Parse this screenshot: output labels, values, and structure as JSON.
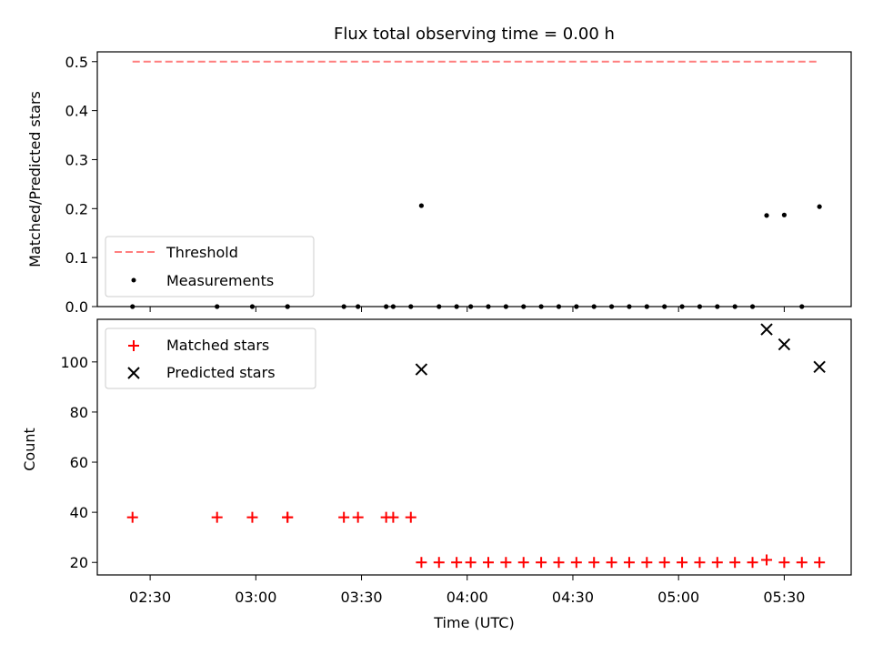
{
  "figure": {
    "title": "Flux total observing time = 0.00 h"
  },
  "chart_data": [
    {
      "type": "line",
      "panel": "top",
      "title": "Flux total observing time = 0.00 h",
      "xlabel": "",
      "ylabel": "Matched/Predicted stars",
      "xlim": [
        "02:15",
        "05:49"
      ],
      "ylim": [
        0.0,
        0.52
      ],
      "yticks": [
        0.0,
        0.1,
        0.2,
        0.3,
        0.4,
        0.5
      ],
      "ytick_labels": [
        "0.0",
        "0.1",
        "0.2",
        "0.3",
        "0.4",
        "0.5"
      ],
      "xticks": [
        "02:30",
        "03:00",
        "03:30",
        "04:00",
        "04:30",
        "05:00",
        "05:30"
      ],
      "legend_position": "lower-left",
      "series": [
        {
          "name": "Threshold",
          "kind": "dashed-line",
          "color": "#ff7f7f",
          "x": [
            "02:25",
            "05:40"
          ],
          "y": [
            0.5,
            0.5
          ]
        },
        {
          "name": "Measurements",
          "kind": "scatter",
          "marker": "dot",
          "color": "#000000",
          "x": [
            "02:25",
            "02:49",
            "02:59",
            "03:09",
            "03:09",
            "03:25",
            "03:29",
            "03:37",
            "03:39",
            "03:44",
            "03:47",
            "03:52",
            "03:57",
            "04:01",
            "04:06",
            "04:11",
            "04:16",
            "04:21",
            "04:26",
            "04:31",
            "04:36",
            "04:41",
            "04:46",
            "04:51",
            "04:56",
            "05:01",
            "05:06",
            "05:11",
            "05:16",
            "05:21",
            "05:25",
            "05:30",
            "05:35",
            "05:40"
          ],
          "y": [
            0.0,
            0.0,
            0.0,
            0.0,
            0.0,
            0.0,
            0.0,
            0.0,
            0.0,
            0.0,
            0.206,
            0.0,
            0.0,
            0.0,
            0.0,
            0.0,
            0.0,
            0.0,
            0.0,
            0.0,
            0.0,
            0.0,
            0.0,
            0.0,
            0.0,
            0.0,
            0.0,
            0.0,
            0.0,
            0.0,
            0.186,
            0.187,
            0.0,
            0.204
          ]
        }
      ]
    },
    {
      "type": "scatter",
      "panel": "bottom",
      "xlabel": "Time (UTC)",
      "ylabel": "Count",
      "xlim": [
        "02:15",
        "05:49"
      ],
      "ylim": [
        15,
        117
      ],
      "yticks": [
        20,
        40,
        60,
        80,
        100
      ],
      "ytick_labels": [
        "20",
        "40",
        "60",
        "80",
        "100"
      ],
      "xticks": [
        "02:30",
        "03:00",
        "03:30",
        "04:00",
        "04:30",
        "05:00",
        "05:30"
      ],
      "legend_position": "top-left",
      "series": [
        {
          "name": "Matched stars",
          "marker": "plus",
          "color": "#ff0000",
          "x": [
            "02:25",
            "02:49",
            "02:59",
            "03:09",
            "03:09",
            "03:25",
            "03:29",
            "03:37",
            "03:39",
            "03:44",
            "03:47",
            "03:52",
            "03:57",
            "04:01",
            "04:06",
            "04:11",
            "04:16",
            "04:21",
            "04:26",
            "04:31",
            "04:36",
            "04:41",
            "04:46",
            "04:51",
            "04:56",
            "05:01",
            "05:06",
            "05:11",
            "05:16",
            "05:21",
            "05:25",
            "05:30",
            "05:35",
            "05:40"
          ],
          "y": [
            38,
            38,
            38,
            38,
            38,
            38,
            38,
            38,
            38,
            38,
            20,
            20,
            20,
            20,
            20,
            20,
            20,
            20,
            20,
            20,
            20,
            20,
            20,
            20,
            20,
            20,
            20,
            20,
            20,
            20,
            21,
            20,
            20,
            20
          ]
        },
        {
          "name": "Predicted stars",
          "marker": "x",
          "color": "#000000",
          "x": [
            "03:47",
            "05:25",
            "05:30",
            "05:40"
          ],
          "y": [
            97,
            113,
            107,
            98
          ]
        }
      ]
    }
  ]
}
